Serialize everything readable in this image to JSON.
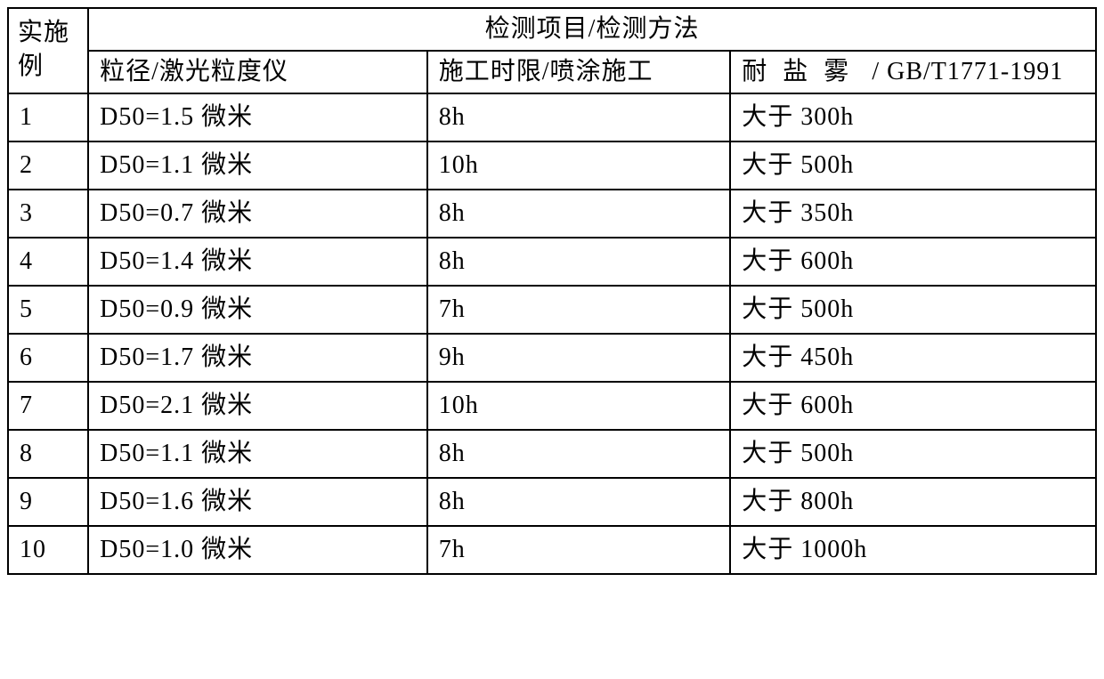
{
  "table": {
    "border_color": "#000000",
    "background_color": "#ffffff",
    "font_family": "SimSun",
    "header": {
      "rowspan_label": "实施例",
      "colspan_label": "检测项目/检测方法",
      "sub_headers": {
        "col_a": "粒径/激光粒度仪",
        "col_b": "施工时限/喷涂施工",
        "col_c_prefix": "耐盐雾",
        "col_c_suffix": " / GB/T1771-1991"
      }
    },
    "rows": [
      {
        "ex": "1",
        "d50": "D50=1.5 微米",
        "time": "8h",
        "salt": "大于 300h"
      },
      {
        "ex": "2",
        "d50": "D50=1.1 微米",
        "time": "10h",
        "salt": "大于 500h"
      },
      {
        "ex": "3",
        "d50": "D50=0.7 微米",
        "time": "8h",
        "salt": "大于 350h"
      },
      {
        "ex": "4",
        "d50": "D50=1.4 微米",
        "time": "8h",
        "salt": "大于 600h"
      },
      {
        "ex": "5",
        "d50": "D50=0.9 微米",
        "time": "7h",
        "salt": "大于 500h"
      },
      {
        "ex": "6",
        "d50": "D50=1.7 微米",
        "time": "9h",
        "salt": "大于 450h"
      },
      {
        "ex": "7",
        "d50": "D50=2.1 微米",
        "time": "10h",
        "salt": "大于 600h"
      },
      {
        "ex": "8",
        "d50": "D50=1.1 微米",
        "time": "8h",
        "salt": "大于 500h"
      },
      {
        "ex": "9",
        "d50": "D50=1.6 微米",
        "time": "8h",
        "salt": "大于 800h"
      },
      {
        "ex": "10",
        "d50": "D50=1.0 微米",
        "time": "7h",
        "salt": "大于 1000h"
      }
    ]
  }
}
